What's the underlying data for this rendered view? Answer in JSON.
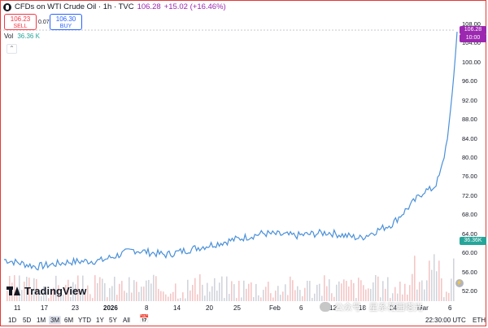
{
  "header": {
    "title": "CFDs on WTI Crude Oil · 1h · TVC",
    "last": "106.28",
    "change": "+15.02 (+16.46%)"
  },
  "sell": {
    "value": "106.23",
    "label": "SELL"
  },
  "buy": {
    "value": "106.30",
    "label": "BUY"
  },
  "spread": "0.07",
  "volume": {
    "label": "Vol",
    "value": "36.36 K"
  },
  "axis": {
    "y_ticks": [
      "108.00",
      "104.00",
      "100.00",
      "96.00",
      "92.00",
      "88.00",
      "84.00",
      "80.00",
      "76.00",
      "72.00",
      "68.00",
      "64.00",
      "60.00",
      "56.00",
      "52.00"
    ],
    "x_ticks": [
      "11",
      "17",
      "23",
      "2026",
      "8",
      "14",
      "20",
      "25",
      "Feb",
      "6",
      "12",
      "18",
      "24",
      "Mar",
      "6"
    ]
  },
  "tags": {
    "price": "106.28",
    "countdown": "10:00",
    "volume": "36.36K"
  },
  "ranges": [
    "1D",
    "5D",
    "1M",
    "3M",
    "6M",
    "YTD",
    "1Y",
    "5Y",
    "All"
  ],
  "active_range": "3M",
  "time_info": "22:30:00 UTC",
  "market": "ETH",
  "logo_text": "TradingView",
  "watermark_text": "公众号 · 星系花园塔光",
  "colors": {
    "line": "#4a90d9",
    "accent": "#9c27b0",
    "volume": "#26a69a"
  },
  "chart_data": {
    "type": "line",
    "x": [
      "11",
      "17",
      "23",
      "2026",
      "8",
      "14",
      "20",
      "25",
      "Feb",
      "6",
      "12",
      "18",
      "24",
      "Mar",
      "6"
    ],
    "series": [
      {
        "values": [
          58.5,
          57.0,
          58.0,
          58.3,
          60.5,
          59.5,
          61.0,
          62.5,
          64.0,
          63.5,
          64.2,
          63.0,
          66.0,
          73.0,
          106.28
        ]
      }
    ],
    "ylim": [
      52,
      110
    ],
    "grid": false
  }
}
